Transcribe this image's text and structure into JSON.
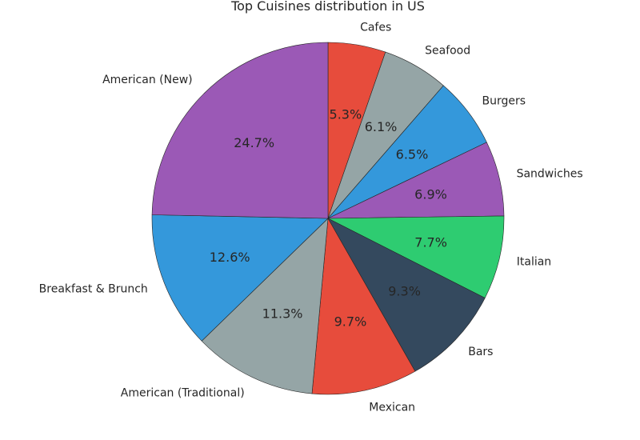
{
  "chart_data": {
    "type": "pie",
    "title": "Top Cuisines distribution in US",
    "startangle_deg": 90,
    "direction": "clockwise",
    "slices": [
      {
        "label": "Cafes",
        "value": 5.3,
        "pct_label": "5.3%",
        "color": "#e74c3c"
      },
      {
        "label": "Seafood",
        "value": 6.1,
        "pct_label": "6.1%",
        "color": "#95a5a6"
      },
      {
        "label": "Burgers",
        "value": 6.5,
        "pct_label": "6.5%",
        "color": "#3498db"
      },
      {
        "label": "Sandwiches",
        "value": 6.9,
        "pct_label": "6.9%",
        "color": "#9b59b6"
      },
      {
        "label": "Italian",
        "value": 7.7,
        "pct_label": "7.7%",
        "color": "#2ecc71"
      },
      {
        "label": "Bars",
        "value": 9.3,
        "pct_label": "9.3%",
        "color": "#34495e"
      },
      {
        "label": "Mexican",
        "value": 9.7,
        "pct_label": "9.7%",
        "color": "#e74c3c"
      },
      {
        "label": "American (Traditional)",
        "value": 11.3,
        "pct_label": "11.3%",
        "color": "#95a5a6"
      },
      {
        "label": "Breakfast & Brunch",
        "value": 12.6,
        "pct_label": "12.6%",
        "color": "#3498db"
      },
      {
        "label": "American (New)",
        "value": 24.7,
        "pct_label": "24.7%",
        "color": "#9b59b6"
      }
    ]
  }
}
